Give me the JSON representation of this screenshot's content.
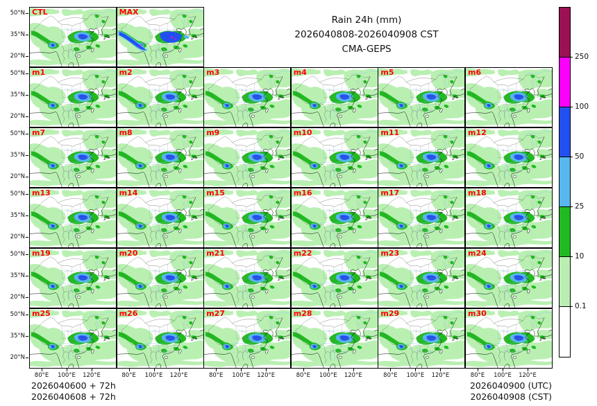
{
  "title": {
    "line1": "Rain 24h (mm)",
    "line2": "2026040808-2026040908 CST",
    "line3": "CMA-GEPS"
  },
  "panels": {
    "rows": [
      [
        "CTL",
        "MAX"
      ],
      [
        "m1",
        "m2",
        "m3",
        "m4",
        "m5",
        "m6"
      ],
      [
        "m7",
        "m8",
        "m9",
        "m10",
        "m11",
        "m12"
      ],
      [
        "m13",
        "m14",
        "m15",
        "m16",
        "m17",
        "m18"
      ],
      [
        "m19",
        "m20",
        "m21",
        "m22",
        "m23",
        "m24"
      ],
      [
        "m25",
        "m26",
        "m27",
        "m28",
        "m29",
        "m30"
      ]
    ],
    "max_label": "MAX",
    "label_color": "#ff0000"
  },
  "axes": {
    "lat_ticks": [
      "50°N",
      "35°N",
      "20°N"
    ],
    "lon_ticks": [
      "80°E",
      "100°E",
      "120°E"
    ]
  },
  "colorbar": {
    "levels": [
      "250",
      "100",
      "50",
      "25",
      "10",
      "0.1"
    ],
    "colors": [
      "#9c1155",
      "#fb00fb",
      "#2250f0",
      "#57b7ee",
      "#21ba21",
      "#b9f0b2",
      "#ffffff"
    ]
  },
  "footer": {
    "left_line1": "2026040600 + 72h",
    "left_line2": "2026040608 + 72h",
    "right_line1": "2026040900 (UTC)",
    "right_line2": "2026040908 (CST)"
  },
  "chart_data": {
    "type": "heatmap",
    "title": "Rain 24h (mm)",
    "subtitle": "2026040808-2026040908 CST",
    "model": "CMA-GEPS",
    "panels": [
      "CTL",
      "MAX",
      "m1",
      "m2",
      "m3",
      "m4",
      "m5",
      "m6",
      "m7",
      "m8",
      "m9",
      "m10",
      "m11",
      "m12",
      "m13",
      "m14",
      "m15",
      "m16",
      "m17",
      "m18",
      "m19",
      "m20",
      "m21",
      "m22",
      "m23",
      "m24",
      "m25",
      "m26",
      "m27",
      "m28",
      "m29",
      "m30"
    ],
    "colorbar_levels_mm": [
      0.1,
      10,
      25,
      50,
      100,
      250
    ],
    "colorbar_colors_low_to_high": [
      "#ffffff",
      "#b9f0b2",
      "#21ba21",
      "#57b7ee",
      "#2250f0",
      "#fb00fb",
      "#9c1155"
    ],
    "lon_ticks": [
      "80°E",
      "100°E",
      "120°E"
    ],
    "lat_ticks": [
      "50°N",
      "35°N",
      "20°N"
    ],
    "init_labels": [
      "2026040600 + 72h",
      "2026040608 + 72h"
    ],
    "valid_labels": [
      "2026040900 (UTC)",
      "2026040908 (CST)"
    ],
    "legend_position": "right",
    "grid": false
  }
}
